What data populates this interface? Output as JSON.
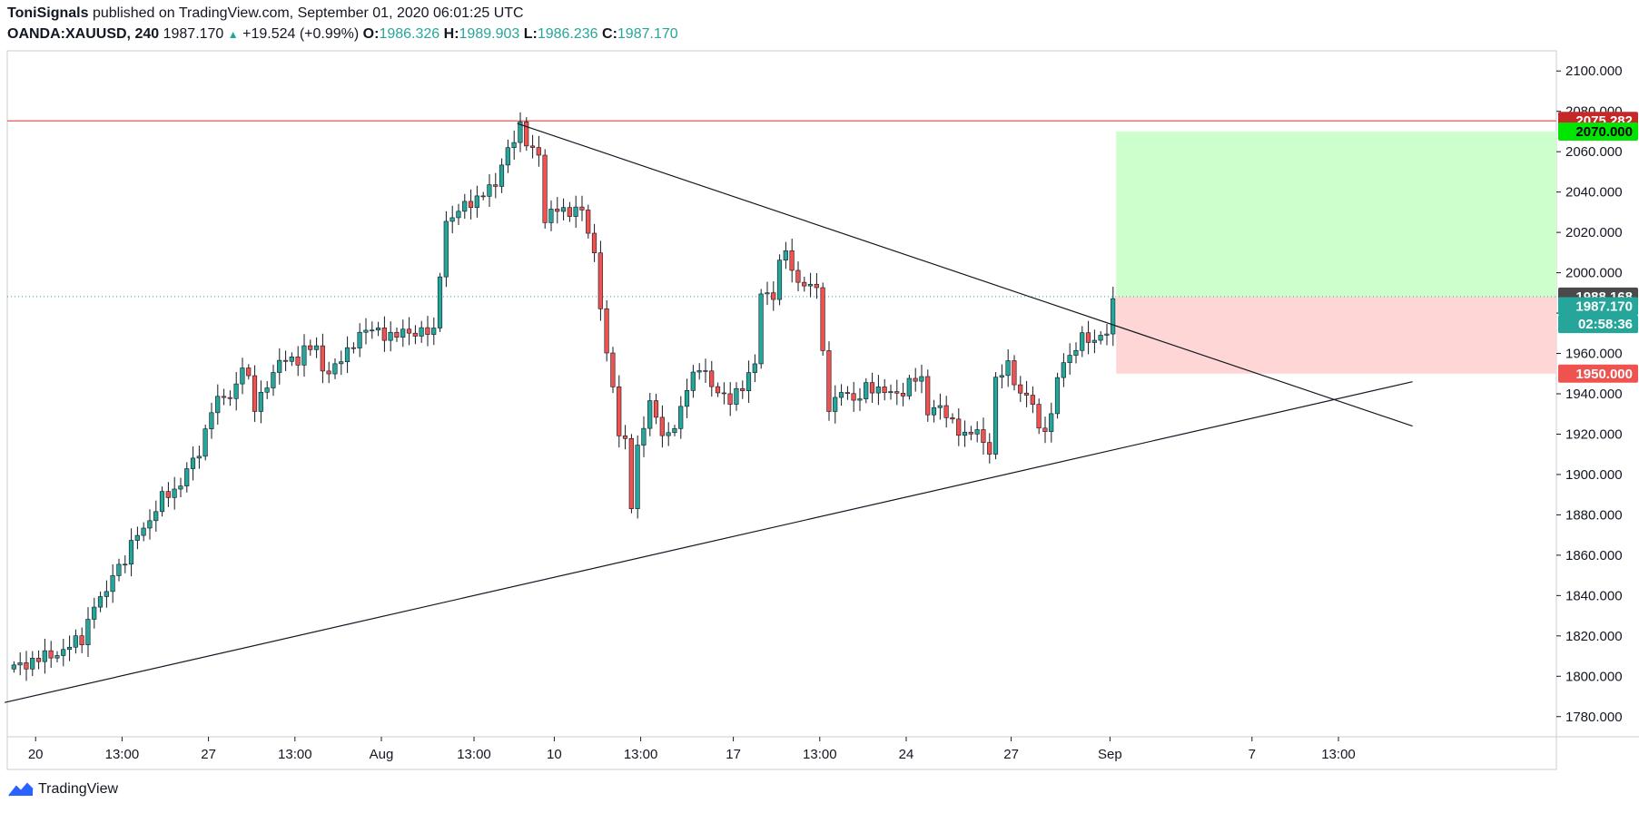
{
  "header": {
    "author": "ToniSignals",
    "published_text": "published on TradingView.com, September 01, 2020 06:01:25 UTC",
    "symbol": "OANDA:XAUUSD, 240",
    "last": "1987.170",
    "change": "+19.524 (+0.99%)",
    "open_label": "O:",
    "open": "1986.326",
    "high_label": "H:",
    "high": "1989.903",
    "low_label": "L:",
    "low": "1986.236",
    "close_label": "C:",
    "close": "1987.170"
  },
  "footer": {
    "brand": "TradingView"
  },
  "colors": {
    "up": "#26a69a",
    "down": "#ef5350",
    "resistance": "#e57373",
    "target_zone": "#ccffcc",
    "stop_zone": "#ffd6d6",
    "tag_resistance": "#c62828",
    "tag_target": "#00e600",
    "tag_stop": "#ef5350",
    "tag_current": "#26a69a",
    "tag_crosshair": "#4a4a4a"
  },
  "chart_data": {
    "type": "candlestick",
    "ylim": [
      1770,
      2110
    ],
    "y_ticks": [
      1780,
      1800,
      1820,
      1840,
      1860,
      1880,
      1900,
      1920,
      1940,
      1960,
      1980,
      2000,
      2020,
      2040,
      2060,
      2080,
      2100
    ],
    "y_tick_labels": [
      "1780.000",
      "1800.000",
      "1820.000",
      "1840.000",
      "1860.000",
      "1880.000",
      "1900.000",
      "1920.000",
      "1940.000",
      "1960.000",
      "1980.000",
      "2000.000",
      "2020.000",
      "2040.000",
      "2060.000",
      "2080.000",
      "2100.000"
    ],
    "x_ticks": [
      {
        "label": "20",
        "bar": 4
      },
      {
        "label": "13:00",
        "bar": 18
      },
      {
        "label": "27",
        "bar": 32
      },
      {
        "label": "13:00",
        "bar": 46
      },
      {
        "label": "Aug",
        "bar": 60
      },
      {
        "label": "13:00",
        "bar": 75
      },
      {
        "label": "10",
        "bar": 88
      },
      {
        "label": "13:00",
        "bar": 102
      },
      {
        "label": "17",
        "bar": 117
      },
      {
        "label": "13:00",
        "bar": 131
      },
      {
        "label": "24",
        "bar": 145
      },
      {
        "label": "27",
        "bar": 162
      },
      {
        "label": "Sep",
        "bar": 178
      },
      {
        "label": "7",
        "bar": 201
      },
      {
        "label": "13:00",
        "bar": 215
      }
    ],
    "ohlc_waypoints": [
      [
        0,
        1804
      ],
      [
        3,
        1808
      ],
      [
        6,
        1810
      ],
      [
        9,
        1815
      ],
      [
        11,
        1818
      ],
      [
        12,
        1828
      ],
      [
        13,
        1836
      ],
      [
        15,
        1840
      ],
      [
        16,
        1852
      ],
      [
        18,
        1858
      ],
      [
        20,
        1870
      ],
      [
        22,
        1878
      ],
      [
        24,
        1888
      ],
      [
        26,
        1892
      ],
      [
        28,
        1902
      ],
      [
        30,
        1910
      ],
      [
        31,
        1922
      ],
      [
        32,
        1934
      ],
      [
        34,
        1938
      ],
      [
        35,
        1937
      ],
      [
        37,
        1955
      ],
      [
        38,
        1946
      ],
      [
        39,
        1932
      ],
      [
        41,
        1946
      ],
      [
        43,
        1955
      ],
      [
        46,
        1958
      ],
      [
        47,
        1962
      ],
      [
        49,
        1962
      ],
      [
        50,
        1952
      ],
      [
        52,
        1953
      ],
      [
        54,
        1960
      ],
      [
        56,
        1971
      ],
      [
        58,
        1971
      ],
      [
        62,
        1969
      ],
      [
        64,
        1970
      ],
      [
        66,
        1972
      ],
      [
        68,
        1969
      ],
      [
        69,
        2000
      ],
      [
        70,
        2026
      ],
      [
        72,
        2030
      ],
      [
        74,
        2035
      ],
      [
        76,
        2040
      ],
      [
        78,
        2042
      ],
      [
        79,
        2055
      ],
      [
        80,
        2062
      ],
      [
        82,
        2071
      ],
      [
        83,
        2064
      ],
      [
        85,
        2060
      ],
      [
        86,
        2025
      ],
      [
        88,
        2032
      ],
      [
        90,
        2031
      ],
      [
        92,
        2030
      ],
      [
        93,
        2020
      ],
      [
        94,
        2010
      ],
      [
        95,
        1985
      ],
      [
        96,
        1957
      ],
      [
        97,
        1944
      ],
      [
        98,
        1918
      ],
      [
        99,
        1920
      ],
      [
        100,
        1884
      ],
      [
        101,
        1912
      ],
      [
        103,
        1935
      ],
      [
        104,
        1932
      ],
      [
        105,
        1918
      ],
      [
        107,
        1922
      ],
      [
        109,
        1945
      ],
      [
        111,
        1952
      ],
      [
        112,
        1949
      ],
      [
        114,
        1942
      ],
      [
        116,
        1935
      ],
      [
        118,
        1945
      ],
      [
        120,
        1955
      ],
      [
        121,
        1988
      ],
      [
        123,
        1990
      ],
      [
        124,
        2005
      ],
      [
        125,
        2012
      ],
      [
        126,
        1998
      ],
      [
        128,
        1995
      ],
      [
        130,
        1993
      ],
      [
        131,
        1958
      ],
      [
        132,
        1934
      ],
      [
        134,
        1942
      ],
      [
        136,
        1935
      ],
      [
        138,
        1945
      ],
      [
        140,
        1940
      ],
      [
        142,
        1942
      ],
      [
        144,
        1940
      ],
      [
        146,
        1948
      ],
      [
        147,
        1948
      ],
      [
        148,
        1932
      ],
      [
        150,
        1932
      ],
      [
        152,
        1927
      ],
      [
        154,
        1918
      ],
      [
        156,
        1922
      ],
      [
        158,
        1912
      ],
      [
        159,
        1945
      ],
      [
        161,
        1955
      ],
      [
        163,
        1940
      ],
      [
        165,
        1935
      ],
      [
        166,
        1922
      ],
      [
        168,
        1928
      ],
      [
        169,
        1948
      ],
      [
        171,
        1960
      ],
      [
        173,
        1968
      ],
      [
        175,
        1964
      ],
      [
        176,
        1972
      ],
      [
        177,
        1970
      ],
      [
        178,
        1987
      ]
    ],
    "bars_total": 179,
    "resistance_level": 2075.282,
    "current_price_line": 1988.168,
    "trendlines": [
      {
        "name": "descending",
        "from": {
          "bar": 82,
          "price": 2074
        },
        "to": {
          "bar": 227,
          "price": 1924
        }
      },
      {
        "name": "ascending",
        "from": {
          "bar": -1,
          "price": 1787
        },
        "to": {
          "bar": 227,
          "price": 1946
        }
      }
    ],
    "position": {
      "entry": 1988.168,
      "target": 2070.0,
      "stop": 1950.0,
      "from_bar": 179,
      "to_bar": 227
    },
    "price_tags": [
      {
        "label": "2075.282",
        "price": 2075.282,
        "kind": "resistance"
      },
      {
        "label": "2070.000",
        "price": 2070.0,
        "kind": "target"
      },
      {
        "label": "1988.168",
        "price": 1988.168,
        "kind": "crosshair"
      },
      {
        "label": "1987.170",
        "price": 1983.4,
        "kind": "current"
      },
      {
        "label": "02:58:36",
        "price": 1974.6,
        "kind": "countdown"
      },
      {
        "label": "1950.000",
        "price": 1950.0,
        "kind": "stop"
      }
    ]
  }
}
